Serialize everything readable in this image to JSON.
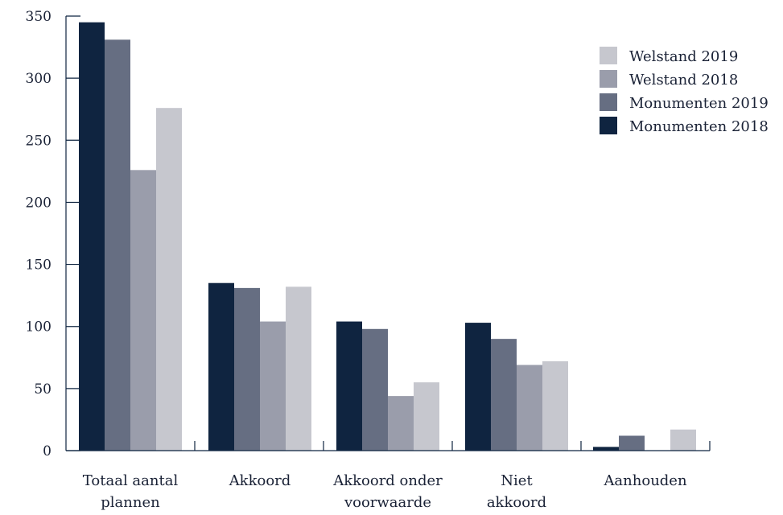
{
  "chart_data": {
    "type": "bar",
    "title": "",
    "xlabel": "",
    "ylabel": "",
    "ylim": [
      0,
      350
    ],
    "yticks": [
      0,
      50,
      100,
      150,
      200,
      250,
      300,
      350
    ],
    "ytick_labels": [
      "0",
      "50",
      "100",
      "150",
      "200",
      "250",
      "300",
      "350"
    ],
    "grid": false,
    "legend_position": "top-right",
    "categories": [
      [
        "Totaal aantal",
        "plannen"
      ],
      [
        "Akkoord"
      ],
      [
        "Akkoord onder",
        "voorwaarde"
      ],
      [
        "Niet",
        "akkoord"
      ],
      [
        "Aanhouden"
      ]
    ],
    "series": [
      {
        "name": "Monumenten 2018",
        "color": "#0f2440",
        "values": [
          345,
          135,
          104,
          103,
          3
        ]
      },
      {
        "name": "Monumenten 2019",
        "color": "#666e82",
        "values": [
          331,
          131,
          98,
          90,
          12
        ]
      },
      {
        "name": "Welstand 2018",
        "color": "#9a9dab",
        "values": [
          226,
          104,
          44,
          69,
          0
        ]
      },
      {
        "name": "Welstand 2019",
        "color": "#c6c7ce",
        "values": [
          276,
          132,
          55,
          72,
          17
        ]
      }
    ],
    "legend_order": [
      "Welstand 2019",
      "Welstand 2018",
      "Monumenten 2019",
      "Monumenten 2018"
    ]
  }
}
